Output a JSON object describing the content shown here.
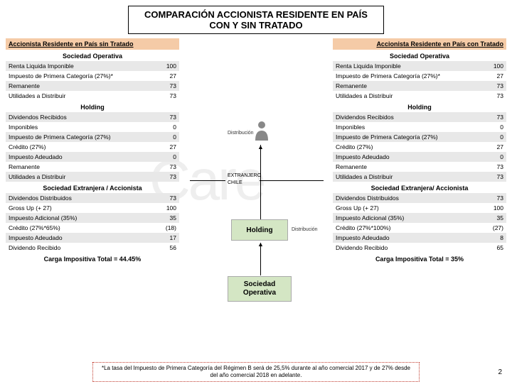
{
  "title": "COMPARACIÓN ACCIONISTA RESIDENTE EN PAÍS CON Y SIN TRATADO",
  "left": {
    "header": "Accionista Residente en País sin Tratado",
    "sections": [
      {
        "title": "Sociedad Operativa",
        "rows": [
          {
            "label": "Renta Liquida Imponible",
            "value": "100",
            "shaded": true
          },
          {
            "label": "Impuesto de Primera Categoría (27%)*",
            "value": "27",
            "shaded": false
          },
          {
            "label": "Remanente",
            "value": "73",
            "shaded": true
          },
          {
            "label": "Utilidades a Distribuir",
            "value": "73",
            "shaded": false
          }
        ]
      },
      {
        "title": "Holding",
        "rows": [
          {
            "label": "Dividendos Recibidos",
            "value": "73",
            "shaded": true
          },
          {
            "label": "Imponibles",
            "value": "0",
            "shaded": false
          },
          {
            "label": "Impuesto de Primera Categoría (27%)",
            "value": "0",
            "shaded": true
          },
          {
            "label": "Crédito (27%)",
            "value": "27",
            "shaded": false
          },
          {
            "label": "Impuesto Adeudado",
            "value": "0",
            "shaded": true
          },
          {
            "label": "Remanente",
            "value": "73",
            "shaded": false
          },
          {
            "label": "Utilidades a Distribuir",
            "value": "73",
            "shaded": true
          }
        ]
      },
      {
        "title": "Sociedad Extranjera / Accionista",
        "rows": [
          {
            "label": "Dividendos Distribuidos",
            "value": "73",
            "shaded": true
          },
          {
            "label": "Gross Up (+ 27)",
            "value": "100",
            "shaded": false
          },
          {
            "label": "Impuesto Adicional (35%)",
            "value": "35",
            "shaded": true
          },
          {
            "label": "Crédito (27%*65%)",
            "value": "(18)",
            "shaded": false
          },
          {
            "label": "Impuesto Adeudado",
            "value": "17",
            "shaded": true
          },
          {
            "label": "Dividendo Recibido",
            "value": "56",
            "shaded": false
          }
        ]
      },
      {
        "title": "Carga Impositiva Total = 44.45%",
        "rows": []
      }
    ]
  },
  "right": {
    "header": "Accionista Residente en País con Tratado",
    "sections": [
      {
        "title": "Sociedad Operativa",
        "rows": [
          {
            "label": "Renta Liquida Imponible",
            "value": "100",
            "shaded": true
          },
          {
            "label": "Impuesto de Primera Categoría (27%)*",
            "value": "27",
            "shaded": false
          },
          {
            "label": "Remanente",
            "value": "73",
            "shaded": true
          },
          {
            "label": "Utilidades a Distribuir",
            "value": "73",
            "shaded": false
          }
        ]
      },
      {
        "title": "Holding",
        "rows": [
          {
            "label": "Dividendos Recibidos",
            "value": "73",
            "shaded": true
          },
          {
            "label": "Imponibles",
            "value": "0",
            "shaded": false
          },
          {
            "label": "Impuesto de Primera Categoría (27%)",
            "value": "0",
            "shaded": true
          },
          {
            "label": "Crédito (27%)",
            "value": "27",
            "shaded": false
          },
          {
            "label": "Impuesto Adeudado",
            "value": "0",
            "shaded": true
          },
          {
            "label": "Remanente",
            "value": "73",
            "shaded": false
          },
          {
            "label": "Utilidades a Distribuir",
            "value": "73",
            "shaded": true
          }
        ]
      },
      {
        "title": "Sociedad Extranjera/ Accionista",
        "rows": [
          {
            "label": "Dividendos Distribuidos",
            "value": "73",
            "shaded": true
          },
          {
            "label": "Gross Up (+ 27)",
            "value": "100",
            "shaded": false
          },
          {
            "label": "Impuesto Adicional (35%)",
            "value": "35",
            "shaded": true
          },
          {
            "label": "Crédito (27%*100%)",
            "value": "(27)",
            "shaded": false
          },
          {
            "label": "Impuesto Adeudado",
            "value": "8",
            "shaded": true
          },
          {
            "label": "Dividendo Recibido",
            "value": "65",
            "shaded": false
          }
        ]
      },
      {
        "title": "Carga Impositiva Total = 35%",
        "rows": []
      }
    ]
  },
  "center": {
    "dist_label": "Distribución",
    "extranjero": "EXTRANJERO",
    "chile": "CHILE",
    "holding": "Holding",
    "soc_op": "Sociedad Operativa"
  },
  "footnote": "*La tasa del Impuesto de Primera Categoría del Régimen B será de 25,5% durante al año comercial 2017 y de 27% desde del año comercial 2018 en adelante.",
  "page": "2",
  "colors": {
    "header_bg": "#f5cba7",
    "shaded_bg": "#e8e8e8",
    "box_bg": "#d4e6c4",
    "footnote_border": "#c0392b"
  }
}
